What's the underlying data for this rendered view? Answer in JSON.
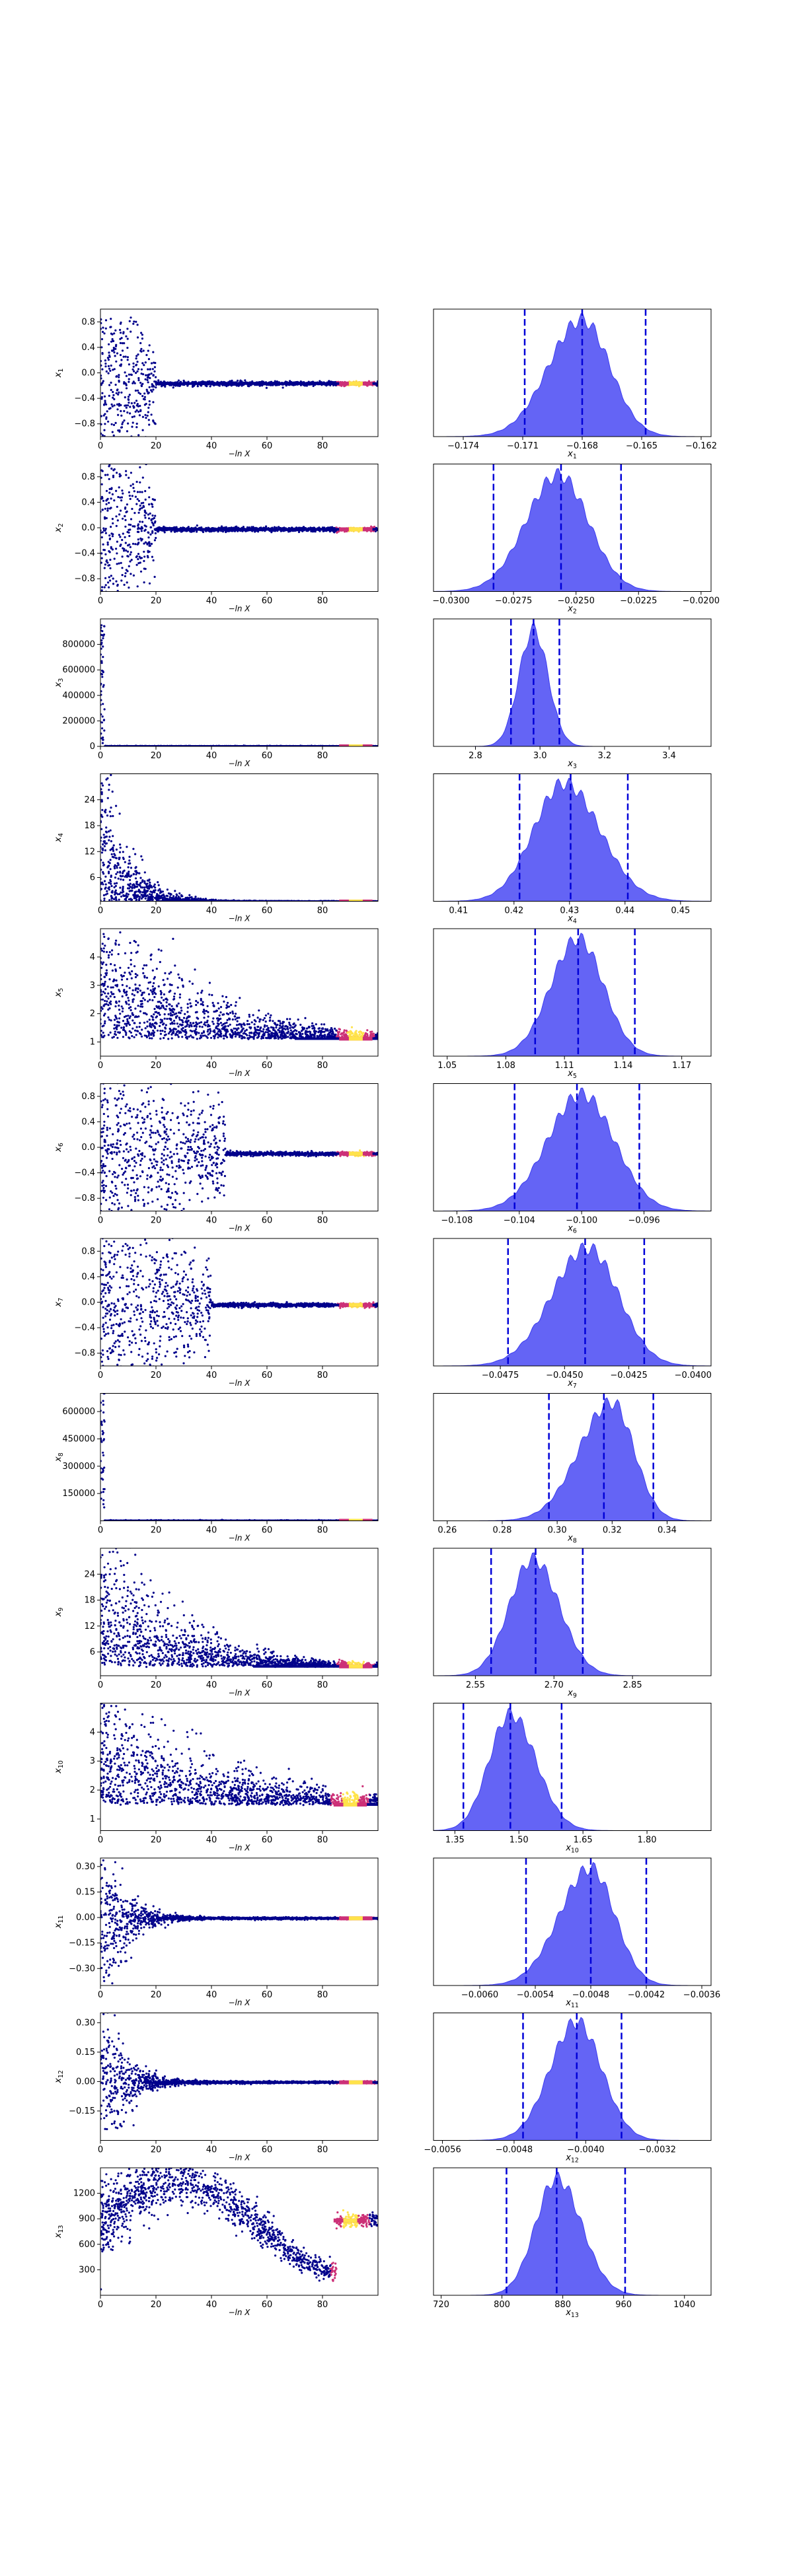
{
  "colors": {
    "trace_low": "#00008B",
    "trace_mid": "#CC3077",
    "trace_high": "#FFE34A",
    "hist_fill": "#6464F5",
    "hist_edge": "#3C3CF0",
    "quantile_line": "#0000D8"
  },
  "chart_data": [
    {
      "type": "scatter",
      "name": "trace",
      "param": "x1",
      "ylabel": "x_1",
      "xlabel": "−ln X",
      "xlim": [
        0,
        100
      ],
      "ylim": [
        -1.0,
        1.0
      ],
      "yticks": [
        -0.8,
        -0.4,
        0.0,
        0.4,
        0.8
      ],
      "ytick_labels": [
        "−0.8",
        "−0.4",
        "0.0",
        "0.4",
        "0.8"
      ],
      "xticks": [
        0,
        20,
        40,
        60,
        80
      ],
      "xtick_labels": [
        "0",
        "20",
        "40",
        "60",
        "80"
      ],
      "converged": -0.168,
      "spread": 0.95,
      "burn_in": 20,
      "mode": "noise",
      "bright_at": 92
    },
    {
      "type": "area",
      "name": "posterior",
      "param": "x1",
      "xlabel": "x_1",
      "xlim": [
        -0.1755,
        -0.1615
      ],
      "xticks": [
        -0.174,
        -0.171,
        -0.168,
        -0.165,
        -0.162
      ],
      "xtick_labels": [
        "−0.174",
        "−0.171",
        "−0.168",
        "−0.165",
        "−0.162"
      ],
      "peak": -0.168,
      "sigma_left": 0.0017,
      "sigma_right": 0.0014,
      "quantiles": [
        -0.1709,
        -0.168,
        -0.1648
      ]
    },
    {
      "type": "scatter",
      "name": "trace",
      "param": "x2",
      "ylabel": "x_2",
      "xlabel": "−ln X",
      "xlim": [
        0,
        100
      ],
      "ylim": [
        -1.0,
        1.0
      ],
      "yticks": [
        -0.8,
        -0.4,
        0.0,
        0.4,
        0.8
      ],
      "ytick_labels": [
        "−0.8",
        "−0.4",
        "0.0",
        "0.4",
        "0.8"
      ],
      "xticks": [
        0,
        20,
        40,
        60,
        80
      ],
      "xtick_labels": [
        "0",
        "20",
        "40",
        "60",
        "80"
      ],
      "converged": -0.025,
      "spread": 0.95,
      "burn_in": 20,
      "mode": "noise",
      "bright_at": 92
    },
    {
      "type": "area",
      "name": "posterior",
      "param": "x2",
      "xlabel": "x_2",
      "xlim": [
        -0.0307,
        -0.0196
      ],
      "xticks": [
        -0.03,
        -0.0275,
        -0.025,
        -0.0225,
        -0.02
      ],
      "xtick_labels": [
        "−0.0300",
        "−0.0275",
        "−0.0250",
        "−0.0225",
        "−0.0200"
      ],
      "peak": -0.0257,
      "sigma_left": 0.0013,
      "sigma_right": 0.0012,
      "quantiles": [
        -0.0283,
        -0.0256,
        -0.0232
      ]
    },
    {
      "type": "scatter",
      "name": "trace",
      "param": "x3",
      "ylabel": "x_3",
      "xlabel": "−ln X",
      "xlim": [
        0,
        100
      ],
      "ylim": [
        0,
        1000000
      ],
      "yticks": [
        0,
        200000,
        400000,
        600000,
        800000
      ],
      "ytick_labels": [
        "0",
        "200000",
        "400000",
        "600000",
        "800000"
      ],
      "xticks": [
        0,
        20,
        40,
        60,
        80
      ],
      "xtick_labels": [
        "0",
        "20",
        "40",
        "60",
        "80"
      ],
      "converged": 3,
      "spread": 0,
      "burn_in": 2,
      "mode": "flat",
      "bright_at": 92
    },
    {
      "type": "area",
      "name": "posterior",
      "param": "x3",
      "xlabel": "x_3",
      "xlim": [
        2.67,
        3.53
      ],
      "xticks": [
        2.8,
        3.0,
        3.2,
        3.4
      ],
      "xtick_labels": [
        "2.8",
        "3.0",
        "3.2",
        "3.4"
      ],
      "peak": 2.98,
      "sigma_left": 0.045,
      "sigma_right": 0.045,
      "quantiles": [
        2.91,
        2.98,
        3.06
      ]
    },
    {
      "type": "scatter",
      "name": "trace",
      "param": "x4",
      "ylabel": "x_4",
      "xlabel": "−ln X",
      "xlim": [
        0,
        100
      ],
      "ylim": [
        0.5,
        30
      ],
      "yticks": [
        6,
        12,
        18,
        24
      ],
      "ytick_labels": [
        "6",
        "12",
        "18",
        "24"
      ],
      "xticks": [
        0,
        20,
        40,
        60,
        80
      ],
      "xtick_labels": [
        "0",
        "20",
        "40",
        "60",
        "80"
      ],
      "converged": 0.43,
      "spread": 29,
      "burn_in": 20,
      "mode": "decay",
      "bright_at": 92
    },
    {
      "type": "area",
      "name": "posterior",
      "param": "x4",
      "xlabel": "x_4",
      "xlim": [
        0.4055,
        0.4555
      ],
      "xticks": [
        0.41,
        0.42,
        0.43,
        0.44,
        0.45
      ],
      "xtick_labels": [
        "0.41",
        "0.42",
        "0.43",
        "0.44",
        "0.45"
      ],
      "peak": 0.429,
      "sigma_left": 0.0055,
      "sigma_right": 0.0065,
      "quantiles": [
        0.421,
        0.4302,
        0.4405
      ]
    },
    {
      "type": "scatter",
      "name": "trace",
      "param": "x5",
      "ylabel": "x_5",
      "xlabel": "−ln X",
      "xlim": [
        0,
        100
      ],
      "ylim": [
        0.5,
        5
      ],
      "yticks": [
        1,
        2,
        3,
        4
      ],
      "ytick_labels": [
        "1",
        "2",
        "3",
        "4"
      ],
      "xticks": [
        0,
        20,
        40,
        60,
        80
      ],
      "xtick_labels": [
        "0",
        "20",
        "40",
        "60",
        "80"
      ],
      "converged": 1.12,
      "spread": 4.2,
      "burn_in": 70,
      "mode": "decay",
      "bright_at": 92
    },
    {
      "type": "area",
      "name": "posterior",
      "param": "x5",
      "xlabel": "x_5",
      "xlim": [
        1.043,
        1.185
      ],
      "xticks": [
        1.05,
        1.08,
        1.11,
        1.14,
        1.17
      ],
      "xtick_labels": [
        "1.05",
        "1.08",
        "1.11",
        "1.14",
        "1.17"
      ],
      "peak": 1.117,
      "sigma_left": 0.014,
      "sigma_right": 0.013,
      "quantiles": [
        1.095,
        1.117,
        1.146
      ]
    },
    {
      "type": "scatter",
      "name": "trace",
      "param": "x6",
      "ylabel": "x_6",
      "xlabel": "−ln X",
      "xlim": [
        0,
        100
      ],
      "ylim": [
        -1.0,
        1.0
      ],
      "yticks": [
        -0.8,
        -0.4,
        0.0,
        0.4,
        0.8
      ],
      "ytick_labels": [
        "−0.8",
        "−0.4",
        "0.0",
        "0.4",
        "0.8"
      ],
      "xticks": [
        0,
        20,
        40,
        60,
        80
      ],
      "xtick_labels": [
        "0",
        "20",
        "40",
        "60",
        "80"
      ],
      "converged": -0.1,
      "spread": 0.9,
      "burn_in": 45,
      "mode": "noise",
      "bright_at": 92
    },
    {
      "type": "area",
      "name": "posterior",
      "param": "x6",
      "xlabel": "x_6",
      "xlim": [
        -0.1095,
        -0.0917
      ],
      "xticks": [
        -0.108,
        -0.104,
        -0.1,
        -0.096
      ],
      "xtick_labels": [
        "−0.108",
        "−0.104",
        "−0.100",
        "−0.096"
      ],
      "peak": -0.1,
      "sigma_left": 0.0022,
      "sigma_right": 0.0021,
      "quantiles": [
        -0.1043,
        -0.1003,
        -0.0963
      ]
    },
    {
      "type": "scatter",
      "name": "trace",
      "param": "x7",
      "ylabel": "x_7",
      "xlabel": "−ln X",
      "xlim": [
        0,
        100
      ],
      "ylim": [
        -1.0,
        1.0
      ],
      "yticks": [
        -0.8,
        -0.4,
        0.0,
        0.4,
        0.8
      ],
      "ytick_labels": [
        "−0.8",
        "−0.4",
        "0.0",
        "0.4",
        "0.8"
      ],
      "xticks": [
        0,
        20,
        40,
        60,
        80
      ],
      "xtick_labels": [
        "0",
        "20",
        "40",
        "60",
        "80"
      ],
      "converged": -0.044,
      "spread": 0.9,
      "burn_in": 40,
      "mode": "noise",
      "bright_at": 92
    },
    {
      "type": "area",
      "name": "posterior",
      "param": "x7",
      "xlabel": "x_7",
      "xlim": [
        -0.0501,
        -0.0393
      ],
      "xticks": [
        -0.0475,
        -0.045,
        -0.0425,
        -0.04
      ],
      "xtick_labels": [
        "−0.0475",
        "−0.0450",
        "−0.0425",
        "−0.0400"
      ],
      "peak": -0.0441,
      "sigma_left": 0.0014,
      "sigma_right": 0.0012,
      "quantiles": [
        -0.0472,
        -0.0442,
        -0.0419
      ]
    },
    {
      "type": "scatter",
      "name": "trace",
      "param": "x8",
      "ylabel": "x_8",
      "xlabel": "−ln X",
      "xlim": [
        0,
        100
      ],
      "ylim": [
        0,
        700000
      ],
      "yticks": [
        150000,
        300000,
        450000,
        600000
      ],
      "ytick_labels": [
        "150000",
        "300000",
        "450000",
        "600000"
      ],
      "xticks": [
        0,
        20,
        40,
        60,
        80
      ],
      "xtick_labels": [
        "0",
        "20",
        "40",
        "60",
        "80"
      ],
      "converged": 0.32,
      "spread": 0,
      "burn_in": 2,
      "mode": "flat",
      "bright_at": 92
    },
    {
      "type": "area",
      "name": "posterior",
      "param": "x8",
      "xlabel": "x_8",
      "xlim": [
        0.255,
        0.356
      ],
      "xticks": [
        0.26,
        0.28,
        0.3,
        0.32,
        0.34
      ],
      "xtick_labels": [
        "0.26",
        "0.28",
        "0.30",
        "0.32",
        "0.34"
      ],
      "peak": 0.32,
      "sigma_left": 0.012,
      "sigma_right": 0.008,
      "quantiles": [
        0.297,
        0.317,
        0.335
      ]
    },
    {
      "type": "scatter",
      "name": "trace",
      "param": "x9",
      "ylabel": "x_9",
      "xlabel": "−ln X",
      "xlim": [
        0,
        100
      ],
      "ylim": [
        0.5,
        30
      ],
      "yticks": [
        6,
        12,
        18,
        24
      ],
      "ytick_labels": [
        "6",
        "12",
        "18",
        "24"
      ],
      "xticks": [
        0,
        20,
        40,
        60,
        80
      ],
      "xtick_labels": [
        "0",
        "20",
        "40",
        "60",
        "80"
      ],
      "converged": 2.67,
      "spread": 28,
      "burn_in": 55,
      "mode": "decay",
      "bright_at": 92
    },
    {
      "type": "area",
      "name": "posterior",
      "param": "x9",
      "xlabel": "x_9",
      "xlim": [
        2.47,
        3.0
      ],
      "xticks": [
        2.55,
        2.7,
        2.85
      ],
      "xtick_labels": [
        "2.55",
        "2.70",
        "2.85"
      ],
      "peak": 2.66,
      "sigma_left": 0.045,
      "sigma_right": 0.05,
      "quantiles": [
        2.58,
        2.665,
        2.755
      ]
    },
    {
      "type": "scatter",
      "name": "trace",
      "param": "x10",
      "ylabel": "x_10",
      "xlabel": "−ln X",
      "xlim": [
        0,
        100
      ],
      "ylim": [
        0.6,
        5
      ],
      "yticks": [
        1,
        2,
        3,
        4
      ],
      "ytick_labels": [
        "1",
        "2",
        "3",
        "4"
      ],
      "xticks": [
        0,
        20,
        40,
        60,
        80
      ],
      "xtick_labels": [
        "0",
        "20",
        "40",
        "60",
        "80"
      ],
      "converged": 1.5,
      "spread": 3.5,
      "burn_in": 85,
      "mode": "decay",
      "bright_at": 90
    },
    {
      "type": "area",
      "name": "posterior",
      "param": "x10",
      "xlabel": "x_10",
      "xlim": [
        1.3,
        1.95
      ],
      "xticks": [
        1.35,
        1.5,
        1.65,
        1.8
      ],
      "xtick_labels": [
        "1.35",
        "1.50",
        "1.65",
        "1.80"
      ],
      "peak": 1.48,
      "sigma_left": 0.05,
      "sigma_right": 0.06,
      "quantiles": [
        1.37,
        1.48,
        1.6
      ]
    },
    {
      "type": "scatter",
      "name": "trace",
      "param": "x11",
      "ylabel": "x_11",
      "xlabel": "−ln X",
      "xlim": [
        0,
        100
      ],
      "ylim": [
        -0.4,
        0.35
      ],
      "yticks": [
        -0.3,
        -0.15,
        0.0,
        0.15,
        0.3
      ],
      "ytick_labels": [
        "−0.30",
        "−0.15",
        "0.00",
        "0.15",
        "0.30"
      ],
      "xticks": [
        0,
        20,
        40,
        60,
        80
      ],
      "xtick_labels": [
        "0",
        "20",
        "40",
        "60",
        "80"
      ],
      "converged": -0.0048,
      "spread": 0.35,
      "burn_in": 20,
      "mode": "funnel",
      "bright_at": 92
    },
    {
      "type": "area",
      "name": "posterior",
      "param": "x11",
      "xlabel": "x_11",
      "xlim": [
        -0.0065,
        -0.0035
      ],
      "xticks": [
        -0.006,
        -0.0054,
        -0.0048,
        -0.0042,
        -0.0036
      ],
      "xtick_labels": [
        "−0.0060",
        "−0.0054",
        "−0.0048",
        "−0.0042",
        "−0.0036"
      ],
      "peak": -0.0048,
      "sigma_left": 0.00034,
      "sigma_right": 0.00026,
      "quantiles": [
        -0.0055,
        -0.0048,
        -0.0042
      ]
    },
    {
      "type": "scatter",
      "name": "trace",
      "param": "x12",
      "ylabel": "x_12",
      "xlabel": "−ln X",
      "xlim": [
        0,
        100
      ],
      "ylim": [
        -0.3,
        0.35
      ],
      "yticks": [
        -0.15,
        0.0,
        0.15,
        0.3
      ],
      "ytick_labels": [
        "−0.15",
        "0.00",
        "0.15",
        "0.30"
      ],
      "xticks": [
        0,
        20,
        40,
        60,
        80
      ],
      "xtick_labels": [
        "0",
        "20",
        "40",
        "60",
        "80"
      ],
      "converged": -0.004,
      "spread": 0.3,
      "burn_in": 20,
      "mode": "funnel",
      "bright_at": 92
    },
    {
      "type": "area",
      "name": "posterior",
      "param": "x12",
      "xlabel": "x_12",
      "xlim": [
        -0.0057,
        -0.0026
      ],
      "xticks": [
        -0.0056,
        -0.0048,
        -0.004,
        -0.0032
      ],
      "xtick_labels": [
        "−0.0056",
        "−0.0048",
        "−0.0040",
        "−0.0032"
      ],
      "peak": -0.0041,
      "sigma_left": 0.0003,
      "sigma_right": 0.00028,
      "quantiles": [
        -0.0047,
        -0.0041,
        -0.0036
      ]
    },
    {
      "type": "scatter",
      "name": "trace",
      "param": "x13",
      "ylabel": "x_13",
      "xlabel": "−ln X",
      "xlim": [
        0,
        100
      ],
      "ylim": [
        0,
        1500
      ],
      "yticks": [
        300,
        600,
        900,
        1200
      ],
      "ytick_labels": [
        "300",
        "600",
        "900",
        "1200"
      ],
      "xticks": [
        0,
        20,
        40,
        60,
        80
      ],
      "xtick_labels": [
        "0",
        "20",
        "40",
        "60",
        "80"
      ],
      "converged": 880,
      "spread": 600,
      "burn_in": 100,
      "mode": "wave",
      "bright_at": 90
    },
    {
      "type": "area",
      "name": "posterior",
      "param": "x13",
      "xlabel": "x_13",
      "xlim": [
        710,
        1075
      ],
      "xticks": [
        720,
        800,
        880,
        960,
        1040
      ],
      "xtick_labels": [
        "720",
        "800",
        "880",
        "960",
        "1040"
      ],
      "peak": 872,
      "sigma_left": 28,
      "sigma_right": 33,
      "quantiles": [
        806,
        872,
        962
      ]
    }
  ]
}
